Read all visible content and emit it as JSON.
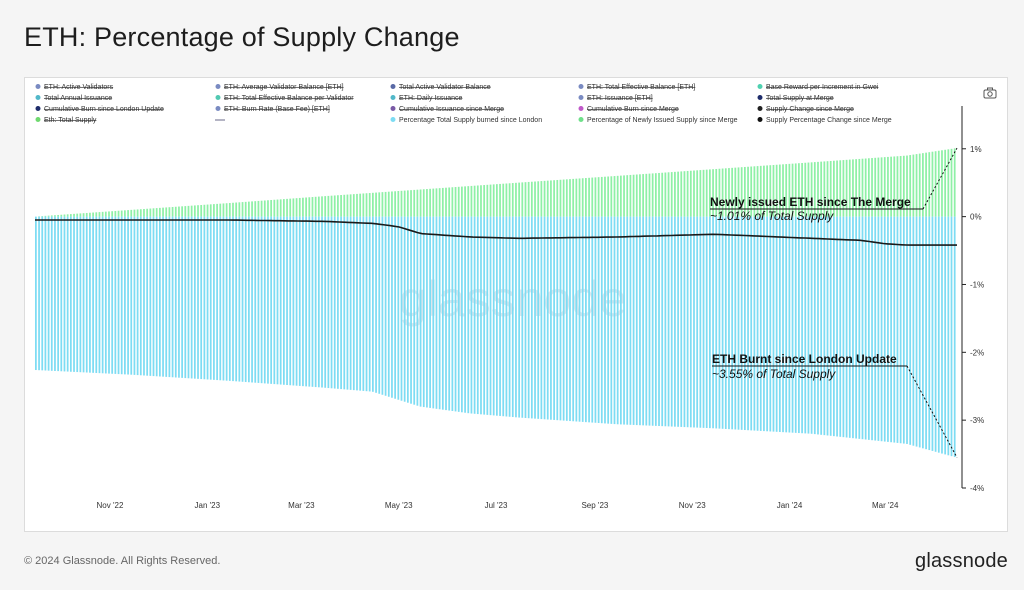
{
  "page": {
    "title": "ETH: Percentage of Supply Change",
    "copyright": "© 2024 Glassnode. All Rights Reserved.",
    "brand": "glassnode",
    "watermark": "glassnode"
  },
  "toolbar": {
    "icon": "camera-icon"
  },
  "colors": {
    "issued": "#8ef0a6",
    "issued_fill": "#d3fbdc",
    "burned": "#7ddcf3",
    "burned_fill": "#d4f4fc",
    "supply_line": "#1a1a1a"
  },
  "legend": [
    {
      "label": "ETH: Active Validators",
      "color": "#7a8bc2",
      "struck": true
    },
    {
      "label": "ETH: Average Validator Balance [ETH]",
      "color": "#7a8bc2",
      "struck": true
    },
    {
      "label": "Total Active Validator Balance",
      "color": "#5a6aa6",
      "struck": true
    },
    {
      "label": "ETH: Total Effective Balance [ETH]",
      "color": "#7a8bc2",
      "struck": true
    },
    {
      "label": "Base Reward per Increment in Gwei",
      "color": "#4fd1b0",
      "struck": true
    },
    {
      "label": "Total Annual Issuance",
      "color": "#52b8c9",
      "struck": true
    },
    {
      "label": "ETH: Total Effective Balance per Validator",
      "color": "#52c9b2",
      "struck": true
    },
    {
      "label": "ETH: Daily Issuance",
      "color": "#52b8c9",
      "struck": true
    },
    {
      "label": "ETH: Issuance [ETH]",
      "color": "#7a8bc2",
      "struck": true
    },
    {
      "label": "Total Supply at Merge",
      "color": "#1f2d6b",
      "struck": true
    },
    {
      "label": "Cumulative Burn since London Update",
      "color": "#1f2d6b",
      "struck": true
    },
    {
      "label": "ETH: Burn Rate (Base Fee) [ETH]",
      "color": "#7a8bc2",
      "struck": true
    },
    {
      "label": "Cumulative Issuance since Merge",
      "color": "#7a5aa6",
      "struck": true
    },
    {
      "label": "Cumulative Burn since Merge",
      "color": "#c05ac9",
      "struck": true
    },
    {
      "label": "Supply Change since Merge",
      "color": "#222222",
      "struck": true
    },
    {
      "label": "Eth: Total Supply",
      "color": "#6fd96f",
      "struck": true
    },
    {
      "label": "",
      "color": "#6a6a8a",
      "struck": false,
      "line": true
    },
    {
      "label": "Percentage Total Supply burned since London",
      "color": "#7ddcf3",
      "struck": false
    },
    {
      "label": "Percentage of Newly Issued Supply since Merge",
      "color": "#6fe08a",
      "struck": false
    },
    {
      "label": "Supply Percentage Change since Merge",
      "color": "#111111",
      "struck": false
    }
  ],
  "chart_data": {
    "type": "bar",
    "x_ticks": [
      "Nov '22",
      "Jan '23",
      "Mar '23",
      "May '23",
      "Jul '23",
      "Sep '23",
      "Nov '23",
      "Jan '24",
      "Mar '24"
    ],
    "y_ticks": [
      "1%",
      "0%",
      "-1%",
      "-2%",
      "-3%",
      "-4%"
    ],
    "ylim": [
      -4,
      1.1
    ],
    "y_axis_position": "right",
    "x_range": [
      "2022-09-15",
      "2024-04-15"
    ],
    "series": [
      {
        "name": "Percentage of Newly Issued Supply since Merge",
        "kind": "bar",
        "points": [
          [
            "2022-09-15",
            0.0
          ],
          [
            "2022-11-15",
            0.1
          ],
          [
            "2023-01-15",
            0.2
          ],
          [
            "2023-03-15",
            0.3
          ],
          [
            "2023-05-15",
            0.4
          ],
          [
            "2023-07-15",
            0.5
          ],
          [
            "2023-09-15",
            0.6
          ],
          [
            "2023-11-15",
            0.7
          ],
          [
            "2024-01-15",
            0.8
          ],
          [
            "2024-03-15",
            0.9
          ],
          [
            "2024-04-15",
            1.01
          ]
        ]
      },
      {
        "name": "Percentage Total Supply burned since London",
        "kind": "bar",
        "points": [
          [
            "2022-09-15",
            -2.26
          ],
          [
            "2022-11-15",
            -2.33
          ],
          [
            "2023-01-15",
            -2.42
          ],
          [
            "2023-03-15",
            -2.52
          ],
          [
            "2023-04-15",
            -2.58
          ],
          [
            "2023-05-15",
            -2.8
          ],
          [
            "2023-06-15",
            -2.9
          ],
          [
            "2023-07-15",
            -2.96
          ],
          [
            "2023-09-15",
            -3.06
          ],
          [
            "2023-11-15",
            -3.12
          ],
          [
            "2024-01-15",
            -3.2
          ],
          [
            "2024-03-15",
            -3.35
          ],
          [
            "2024-04-15",
            -3.55
          ]
        ]
      },
      {
        "name": "Supply Percentage Change since Merge",
        "kind": "line",
        "points": [
          [
            "2022-09-15",
            -0.05
          ],
          [
            "2022-11-15",
            -0.05
          ],
          [
            "2023-01-15",
            -0.05
          ],
          [
            "2023-03-15",
            -0.07
          ],
          [
            "2023-04-15",
            -0.1
          ],
          [
            "2023-05-01",
            -0.15
          ],
          [
            "2023-05-15",
            -0.25
          ],
          [
            "2023-06-15",
            -0.3
          ],
          [
            "2023-07-15",
            -0.32
          ],
          [
            "2023-09-15",
            -0.3
          ],
          [
            "2023-11-15",
            -0.26
          ],
          [
            "2024-01-15",
            -0.32
          ],
          [
            "2024-02-15",
            -0.35
          ],
          [
            "2024-03-01",
            -0.4
          ],
          [
            "2024-03-15",
            -0.42
          ],
          [
            "2024-04-15",
            -0.42
          ]
        ]
      }
    ],
    "annotations": [
      {
        "title": "Newly issued ETH since The Merge",
        "subtitle": "~1.01% of Total Supply",
        "value": 1.01
      },
      {
        "title": "ETH Burnt since London Update",
        "subtitle": "~3.55% of Total Supply",
        "value": -3.55
      }
    ]
  }
}
